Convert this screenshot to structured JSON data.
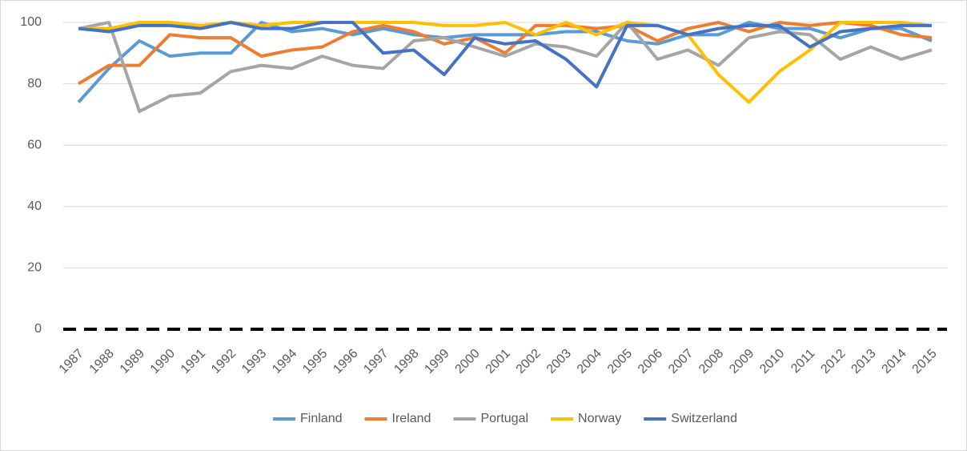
{
  "chart_data": {
    "type": "line",
    "categories": [
      "1987",
      "1988",
      "1989",
      "1990",
      "1991",
      "1992",
      "1993",
      "1994",
      "1995",
      "1996",
      "1997",
      "1998",
      "1999",
      "2000",
      "2001",
      "2002",
      "2003",
      "2004",
      "2005",
      "2006",
      "2007",
      "2008",
      "2009",
      "2010",
      "2011",
      "2012",
      "2013",
      "2014",
      "2015"
    ],
    "series": [
      {
        "name": "Finland",
        "color": "#5b9bd5",
        "values": [
          74,
          85,
          94,
          89,
          90,
          90,
          100,
          97,
          98,
          96,
          98,
          96,
          95,
          96,
          96,
          96,
          97,
          97,
          94,
          93,
          96,
          96,
          100,
          98,
          98,
          95,
          98,
          98,
          94
        ]
      },
      {
        "name": "Ireland",
        "color": "#ed7d31",
        "values": [
          80,
          86,
          86,
          96,
          95,
          95,
          89,
          91,
          92,
          97,
          99,
          97,
          93,
          95,
          90,
          99,
          99,
          98,
          99,
          94,
          98,
          100,
          97,
          100,
          99,
          100,
          99,
          96,
          95
        ]
      },
      {
        "name": "Portugal",
        "color": "#a5a5a5",
        "values": [
          98,
          100,
          71,
          76,
          77,
          84,
          86,
          85,
          89,
          86,
          85,
          94,
          95,
          92,
          89,
          93,
          92,
          89,
          100,
          88,
          91,
          86,
          95,
          97,
          96,
          88,
          92,
          88,
          91
        ]
      },
      {
        "name": "Norway",
        "color": "#ffc000",
        "values": [
          98,
          98,
          100,
          100,
          99,
          100,
          99,
          100,
          100,
          100,
          100,
          100,
          99,
          99,
          100,
          96,
          100,
          96,
          100,
          99,
          96,
          83,
          74,
          84,
          91,
          100,
          100,
          100,
          99
        ]
      },
      {
        "name": "Switzerland",
        "color": "#4472c4",
        "values": [
          98,
          97,
          99,
          99,
          98,
          100,
          98,
          98,
          100,
          100,
          90,
          91,
          83,
          95,
          93,
          94,
          88,
          79,
          99,
          99,
          96,
          98,
          99,
          99,
          92,
          97,
          98,
          99,
          99
        ]
      }
    ],
    "ylim": [
      0,
      100
    ],
    "yticks": [
      0,
      20,
      40,
      60,
      80,
      100
    ],
    "grid": true,
    "legend": "bottom"
  }
}
